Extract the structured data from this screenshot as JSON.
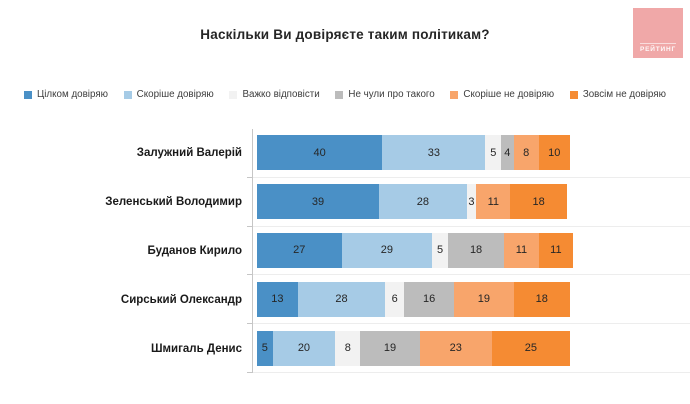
{
  "header": {
    "title": "Наскільки Ви довіряєте таким політикам?",
    "logo_text": "РЕЙТИНГ",
    "logo_color": "#F0A8A8"
  },
  "chart_data": {
    "type": "bar",
    "orientation": "horizontal",
    "stacked": true,
    "title": "Наскільки Ви довіряєте таким політикам?",
    "xlim": [
      0,
      100
    ],
    "legend_position": "top",
    "value_labels": true,
    "grid": "row-separators",
    "categories": [
      "Залужний Валерій",
      "Зеленський Володимир",
      "Буданов Кирило",
      "Сирський Олександр",
      "Шмигаль Денис"
    ],
    "series": [
      {
        "name": "Цілком довіряю",
        "color": "#4A90C6",
        "values": [
          40,
          39,
          27,
          13,
          5
        ]
      },
      {
        "name": "Скоріше довіряю",
        "color": "#A6CBE6",
        "values": [
          33,
          28,
          29,
          28,
          20
        ]
      },
      {
        "name": "Важко відповісти",
        "color": "#F2F2F2",
        "values": [
          5,
          3,
          5,
          6,
          8
        ]
      },
      {
        "name": "Не чули про такого",
        "color": "#BCBCBC",
        "values": [
          4,
          0,
          18,
          16,
          19
        ]
      },
      {
        "name": "Скоріше не довіряю",
        "color": "#F8A56B",
        "values": [
          8,
          11,
          11,
          19,
          23
        ]
      },
      {
        "name": "Зовсім не довіряю",
        "color": "#F58B33",
        "values": [
          10,
          18,
          11,
          18,
          25
        ]
      }
    ]
  }
}
